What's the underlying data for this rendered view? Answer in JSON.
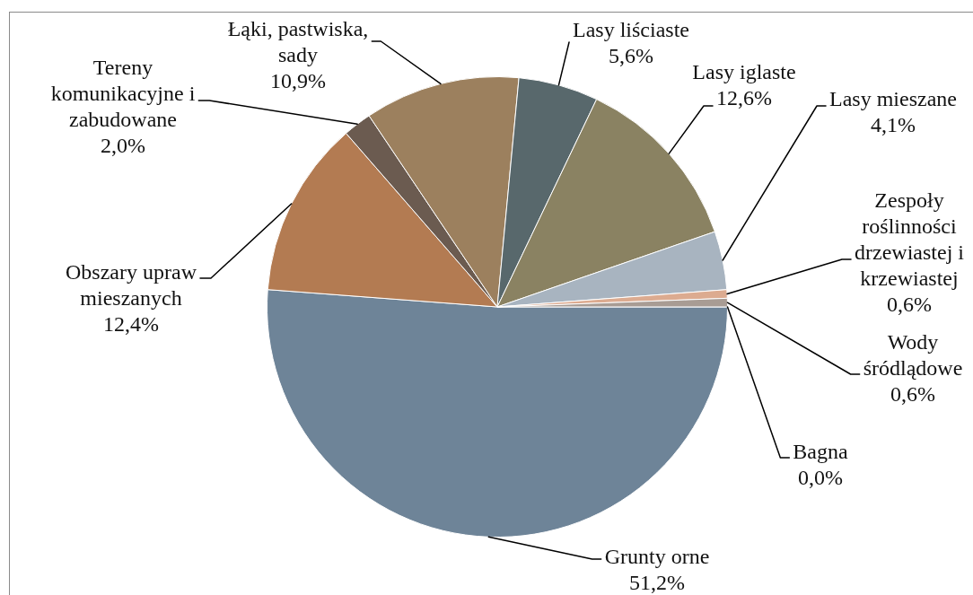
{
  "chart_data": {
    "type": "pie",
    "categories": [
      "Grunty orne",
      "Obszary upraw mieszanych",
      "Tereny komunikacyjne i zabudowane",
      "Łąki, pastwiska, sady",
      "Lasy liściaste",
      "Lasy iglaste",
      "Lasy mieszane",
      "Zespoły roślinności drzewiastej i krzewiastej",
      "Wody śródlądowe",
      "Bagna"
    ],
    "values": [
      51.2,
      12.4,
      2.0,
      10.9,
      5.6,
      12.6,
      4.1,
      0.6,
      0.6,
      0.0
    ],
    "colors": [
      "#6e8498",
      "#b37b52",
      "#6b5b50",
      "#9c805e",
      "#58686c",
      "#8a8262",
      "#a8b4c0",
      "#dcab90",
      "#a89c94",
      "#8c9c7c"
    ],
    "value_labels": [
      "51,2%",
      "12,4%",
      "2,0%",
      "10,9%",
      "5,6%",
      "12,6%",
      "4,1%",
      "0,6%",
      "0,6%",
      "0,0%"
    ]
  }
}
